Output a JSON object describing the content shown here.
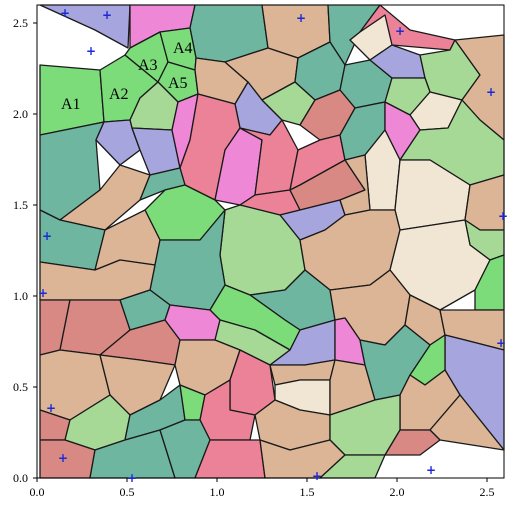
{
  "title": "",
  "axes": {
    "x_ticks": [
      "0.0",
      "0.5",
      "1.0",
      "1.5",
      "2.0",
      "2.5"
    ],
    "y_ticks": [
      "0.0",
      "0.5",
      "1.0",
      "1.5",
      "2.0",
      "2.5"
    ],
    "x_range": [
      0,
      2.55
    ],
    "y_range": [
      0,
      2.6
    ]
  },
  "region_labels": [
    {
      "text": "A1"
    },
    {
      "text": "A2"
    },
    {
      "text": "A3"
    },
    {
      "text": "A4"
    },
    {
      "text": "A5"
    }
  ],
  "seed_marker": "+",
  "colors": {
    "pink": "#ee88d6",
    "teal": "#6fb6a0",
    "green": "#7ddc7a",
    "tan": "#dbb596",
    "rose": "#ec8297",
    "lavender": "#a6a5dd",
    "light_green": "#a6d996",
    "dusty_red": "#d88984",
    "cream": "#f1e6d4",
    "seed_blue": "#1a2bd6"
  }
}
